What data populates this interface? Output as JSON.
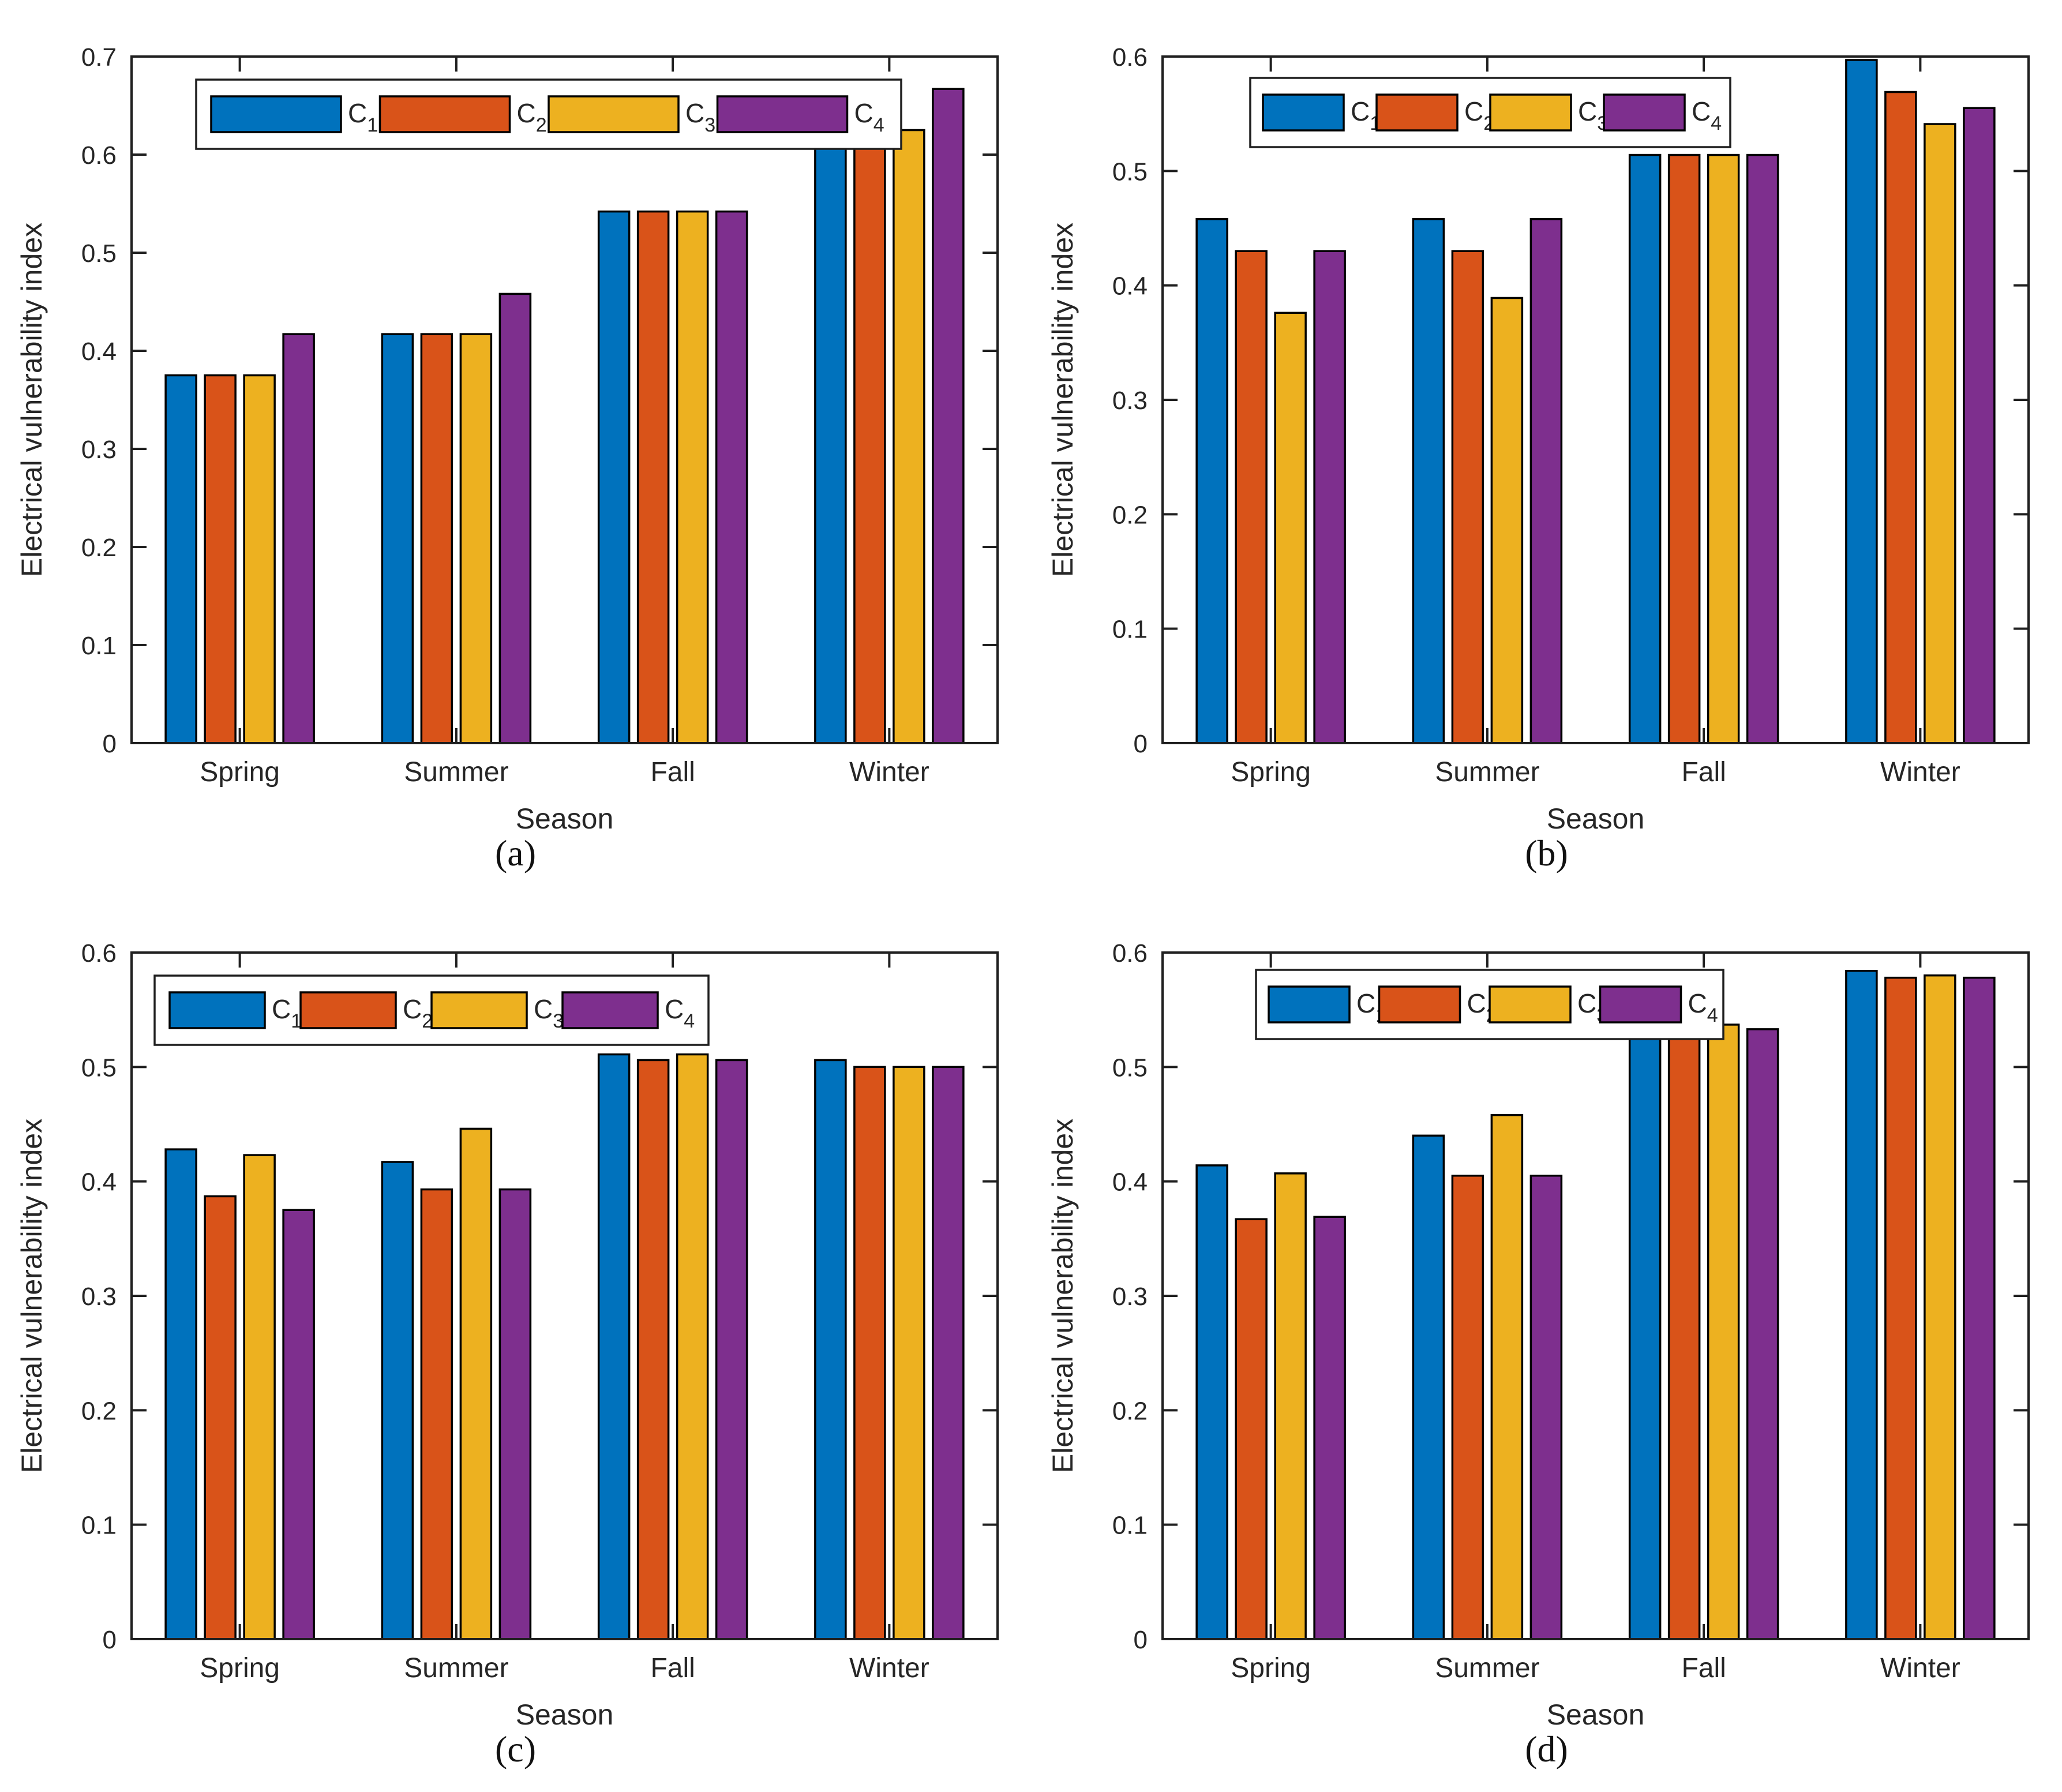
{
  "figure": {
    "background": "#ffffff",
    "axis_color": "#1f1f1f",
    "text_color": "#262626",
    "bar_edge_color": "#000000",
    "series_colors": [
      "#0072BD",
      "#D95319",
      "#EDB120",
      "#7E2F8E"
    ],
    "legend_entries": [
      {
        "base": "C",
        "sub": "1"
      },
      {
        "base": "C",
        "sub": "2"
      },
      {
        "base": "C",
        "sub": "3"
      },
      {
        "base": "C",
        "sub": "4"
      }
    ]
  },
  "chart_data": [
    {
      "type": "bar",
      "caption": "(a)",
      "title": "",
      "xlabel": "Season",
      "ylabel": "Electrical vulnerability index",
      "ylim": [
        0,
        0.7
      ],
      "ytick_step": 0.1,
      "ytick_labels": [
        "0",
        "0.1",
        "0.2",
        "0.3",
        "0.4",
        "0.5",
        "0.6",
        "0.7"
      ],
      "grid": "off",
      "legend_position": "top-left-horizontal",
      "categories": [
        "Spring",
        "Summer",
        "Fall",
        "Winter"
      ],
      "series": [
        {
          "name": "C1",
          "values": [
            0.375,
            0.417,
            0.542,
            0.667
          ]
        },
        {
          "name": "C2",
          "values": [
            0.375,
            0.417,
            0.542,
            0.667
          ]
        },
        {
          "name": "C3",
          "values": [
            0.375,
            0.417,
            0.542,
            0.625
          ]
        },
        {
          "name": "C4",
          "values": [
            0.417,
            0.458,
            0.542,
            0.667
          ]
        }
      ]
    },
    {
      "type": "bar",
      "caption": "(b)",
      "title": "",
      "xlabel": "Season",
      "ylabel": "Electrical vulnerability index",
      "ylim": [
        0,
        0.6
      ],
      "ytick_step": 0.1,
      "ytick_labels": [
        "0",
        "0.1",
        "0.2",
        "0.3",
        "0.4",
        "0.5",
        "0.6"
      ],
      "grid": "off",
      "legend_position": "top-left-horizontal",
      "categories": [
        "Spring",
        "Summer",
        "Fall",
        "Winter"
      ],
      "series": [
        {
          "name": "C1",
          "values": [
            0.458,
            0.458,
            0.514,
            0.597
          ]
        },
        {
          "name": "C2",
          "values": [
            0.43,
            0.43,
            0.514,
            0.569
          ]
        },
        {
          "name": "C3",
          "values": [
            0.376,
            0.389,
            0.514,
            0.541
          ]
        },
        {
          "name": "C4",
          "values": [
            0.43,
            0.458,
            0.514,
            0.555
          ]
        }
      ]
    },
    {
      "type": "bar",
      "caption": "(c)",
      "title": "",
      "xlabel": "Season",
      "ylabel": "Electrical vulnerability index",
      "ylim": [
        0,
        0.6
      ],
      "ytick_step": 0.1,
      "ytick_labels": [
        "0",
        "0.1",
        "0.2",
        "0.3",
        "0.4",
        "0.5",
        "0.6"
      ],
      "grid": "off",
      "legend_position": "top-left-horizontal",
      "categories": [
        "Spring",
        "Summer",
        "Fall",
        "Winter"
      ],
      "series": [
        {
          "name": "C1",
          "values": [
            0.428,
            0.417,
            0.511,
            0.506
          ]
        },
        {
          "name": "C2",
          "values": [
            0.387,
            0.393,
            0.506,
            0.5
          ]
        },
        {
          "name": "C3",
          "values": [
            0.423,
            0.446,
            0.511,
            0.5
          ]
        },
        {
          "name": "C4",
          "values": [
            0.375,
            0.393,
            0.506,
            0.5
          ]
        }
      ]
    },
    {
      "type": "bar",
      "caption": "(d)",
      "title": "",
      "xlabel": "Season",
      "ylabel": "Electrical vulnerability index",
      "ylim": [
        0,
        0.6
      ],
      "ytick_step": 0.1,
      "ytick_labels": [
        "0",
        "0.1",
        "0.2",
        "0.3",
        "0.4",
        "0.5",
        "0.6"
      ],
      "grid": "off",
      "legend_position": "top-left-horizontal",
      "categories": [
        "Spring",
        "Summer",
        "Fall",
        "Winter"
      ],
      "series": [
        {
          "name": "C1",
          "values": [
            0.414,
            0.44,
            0.542,
            0.584
          ]
        },
        {
          "name": "C2",
          "values": [
            0.367,
            0.405,
            0.533,
            0.578
          ]
        },
        {
          "name": "C3",
          "values": [
            0.407,
            0.458,
            0.537,
            0.58
          ]
        },
        {
          "name": "C4",
          "values": [
            0.369,
            0.405,
            0.533,
            0.578
          ]
        }
      ]
    }
  ]
}
